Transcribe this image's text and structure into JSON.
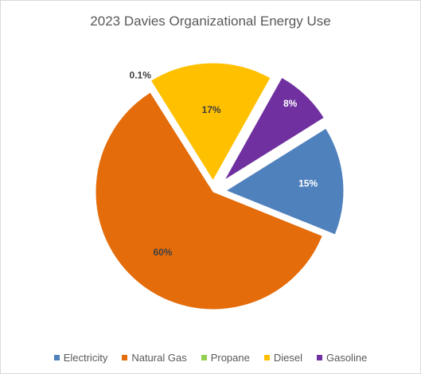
{
  "chart_data": {
    "type": "pie",
    "title": "2023 Davies Organizational Energy Use",
    "legend_position": "bottom",
    "categories": [
      "Electricity",
      "Natural Gas",
      "Propane",
      "Diesel",
      "Gasoline"
    ],
    "values": [
      15,
      60,
      0.1,
      17,
      8
    ],
    "data_labels": [
      "15%",
      "60%",
      "0.1%",
      "17%",
      "8%"
    ],
    "colors": [
      "#4f81bd",
      "#e46c0a",
      "#92d050",
      "#ffc000",
      "#7030a0"
    ],
    "label_colors": [
      "#ffffff",
      "#404040",
      "#404040",
      "#404040",
      "#ffffff"
    ],
    "exploded": true
  }
}
